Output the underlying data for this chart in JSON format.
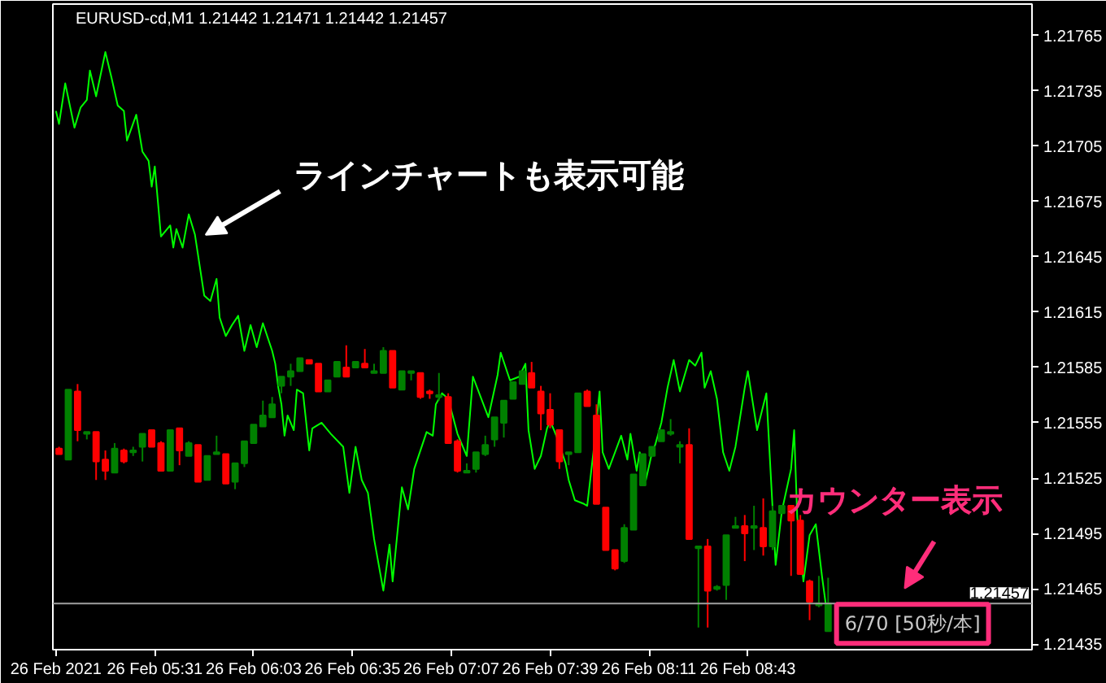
{
  "chart_data": {
    "type": "candlestick",
    "title": "EURUSD-cd,M1  1.21442 1.21471 1.21442 1.21457",
    "x": [
      "2021-02-26T05:00",
      "2021-02-26T05:03",
      "2021-02-26T05:06",
      "2021-02-26T05:09",
      "2021-02-26T05:12",
      "2021-02-26T05:15",
      "2021-02-26T05:18",
      "2021-02-26T05:21",
      "2021-02-26T05:24",
      "2021-02-26T05:27",
      "2021-02-26T05:30",
      "2021-02-26T05:33",
      "2021-02-26T05:36",
      "2021-02-26T05:39",
      "2021-02-26T05:42",
      "2021-02-26T05:45",
      "2021-02-26T05:48",
      "2021-02-26T05:51",
      "2021-02-26T05:54",
      "2021-02-26T05:57",
      "2021-02-26T06:00",
      "2021-02-26T06:03",
      "2021-02-26T06:06",
      "2021-02-26T06:09",
      "2021-02-26T06:12",
      "2021-02-26T06:15",
      "2021-02-26T06:18",
      "2021-02-26T06:21",
      "2021-02-26T06:24",
      "2021-02-26T06:27",
      "2021-02-26T06:30",
      "2021-02-26T06:33",
      "2021-02-26T06:36",
      "2021-02-26T06:39",
      "2021-02-26T06:42",
      "2021-02-26T06:45",
      "2021-02-26T06:48",
      "2021-02-26T06:51",
      "2021-02-26T06:54",
      "2021-02-26T06:57",
      "2021-02-26T07:00",
      "2021-02-26T07:03",
      "2021-02-26T07:06",
      "2021-02-26T07:09",
      "2021-02-26T07:12",
      "2021-02-26T07:15",
      "2021-02-26T07:18",
      "2021-02-26T07:21",
      "2021-02-26T07:24",
      "2021-02-26T07:27",
      "2021-02-26T07:30",
      "2021-02-26T07:33",
      "2021-02-26T07:36",
      "2021-02-26T07:39",
      "2021-02-26T07:42",
      "2021-02-26T07:45",
      "2021-02-26T07:48",
      "2021-02-26T07:51",
      "2021-02-26T07:54",
      "2021-02-26T07:57",
      "2021-02-26T08:00",
      "2021-02-26T08:03",
      "2021-02-26T08:06",
      "2021-02-26T08:09",
      "2021-02-26T08:12",
      "2021-02-26T08:15",
      "2021-02-26T08:18",
      "2021-02-26T08:21",
      "2021-02-26T08:24",
      "2021-02-26T08:27",
      "2021-02-26T08:30",
      "2021-02-26T08:33",
      "2021-02-26T08:36",
      "2021-02-26T08:39",
      "2021-02-26T08:42",
      "2021-02-26T08:45",
      "2021-02-26T08:48",
      "2021-02-26T08:51",
      "2021-02-26T08:54",
      "2021-02-26T08:57",
      "2021-02-26T09:00",
      "2021-02-26T09:03",
      "2021-02-26T09:06",
      "2021-02-26T09:09"
    ],
    "ohlc": [
      [
        1.21541,
        1.21542,
        1.21538,
        1.21538
      ],
      [
        1.21535,
        1.21573,
        1.21535,
        1.21573
      ],
      [
        1.21572,
        1.21576,
        1.21545,
        1.21551
      ],
      [
        1.21549,
        1.2155,
        1.21546,
        1.2155
      ],
      [
        1.2155,
        1.2155,
        1.21524,
        1.21534
      ],
      [
        1.21535,
        1.2154,
        1.21524,
        1.21529
      ],
      [
        1.21528,
        1.21544,
        1.21528,
        1.21541
      ],
      [
        1.2154,
        1.21541,
        1.21533,
        1.21534
      ],
      [
        1.21539,
        1.21542,
        1.21537,
        1.2154
      ],
      [
        1.21542,
        1.21549,
        1.21534,
        1.21549
      ],
      [
        1.21551,
        1.21551,
        1.21542,
        1.21542
      ],
      [
        1.21544,
        1.21545,
        1.21529,
        1.21529
      ],
      [
        1.21529,
        1.21551,
        1.21529,
        1.21551
      ],
      [
        1.21552,
        1.21552,
        1.21532,
        1.2154
      ],
      [
        1.21537,
        1.21545,
        1.21537,
        1.21544
      ],
      [
        1.21543,
        1.21543,
        1.21523,
        1.21523
      ],
      [
        1.21524,
        1.21537,
        1.21524,
        1.21537
      ],
      [
        1.21538,
        1.21548,
        1.21538,
        1.21539
      ],
      [
        1.21538,
        1.21538,
        1.21522,
        1.21522
      ],
      [
        1.21523,
        1.21533,
        1.21519,
        1.21533
      ],
      [
        1.21533,
        1.21545,
        1.21531,
        1.21545
      ],
      [
        1.21544,
        1.21554,
        1.21544,
        1.21554
      ],
      [
        1.21553,
        1.21567,
        1.21553,
        1.21559
      ],
      [
        1.21558,
        1.21569,
        1.21558,
        1.21565
      ],
      [
        1.21575,
        1.2158,
        1.21571,
        1.2158
      ],
      [
        1.2158,
        1.21587,
        1.21575,
        1.21583
      ],
      [
        1.21583,
        1.2159,
        1.21583,
        1.2159
      ],
      [
        1.21589,
        1.21589,
        1.21587,
        1.21587
      ],
      [
        1.21587,
        1.21587,
        1.21572,
        1.21572
      ],
      [
        1.21572,
        1.21578,
        1.21572,
        1.21578
      ],
      [
        1.2158,
        1.21588,
        1.2158,
        1.21588
      ],
      [
        1.21585,
        1.21597,
        1.2158,
        1.2158
      ],
      [
        1.21585,
        1.21588,
        1.21585,
        1.21588
      ],
      [
        1.21587,
        1.21595,
        1.21585,
        1.21585
      ],
      [
        1.21582,
        1.21587,
        1.21582,
        1.21583
      ],
      [
        1.21582,
        1.21596,
        1.21582,
        1.21594
      ],
      [
        1.21594,
        1.21594,
        1.21574,
        1.21574
      ],
      [
        1.21573,
        1.21583,
        1.21573,
        1.21583
      ],
      [
        1.21582,
        1.21583,
        1.21578,
        1.21583
      ],
      [
        1.21582,
        1.21582,
        1.21568,
        1.21569
      ],
      [
        1.21572,
        1.21573,
        1.21568,
        1.21571
      ],
      [
        1.21569,
        1.21582,
        1.21567,
        1.2157
      ],
      [
        1.21569,
        1.21571,
        1.21544,
        1.21544
      ],
      [
        1.21545,
        1.21546,
        1.21528,
        1.21529
      ],
      [
        1.21528,
        1.21533,
        1.21528,
        1.21529
      ],
      [
        1.2153,
        1.21539,
        1.21528,
        1.21539
      ],
      [
        1.21538,
        1.21548,
        1.21537,
        1.21543
      ],
      [
        1.21546,
        1.21558,
        1.21542,
        1.21558
      ],
      [
        1.21555,
        1.21567,
        1.21547,
        1.21567
      ],
      [
        1.21568,
        1.21577,
        1.21568,
        1.21577
      ],
      [
        1.21576,
        1.21583,
        1.21576,
        1.21583
      ],
      [
        1.21582,
        1.21588,
        1.21574,
        1.21574
      ],
      [
        1.21572,
        1.21575,
        1.21551,
        1.2156
      ],
      [
        1.21562,
        1.21571,
        1.21552,
        1.21554
      ],
      [
        1.21551,
        1.21551,
        1.2153,
        1.21534
      ],
      [
        1.21538,
        1.21539,
        1.21532,
        1.21539
      ],
      [
        1.21539,
        1.21571,
        1.21539,
        1.21571
      ],
      [
        1.21572,
        1.21573,
        1.21564,
        1.21564
      ],
      [
        1.21559,
        1.21565,
        1.21511,
        1.21511
      ],
      [
        1.21509,
        1.21509,
        1.21486,
        1.21486
      ],
      [
        1.21486,
        1.21486,
        1.21475,
        1.21476
      ],
      [
        1.2148,
        1.215,
        1.21479,
        1.21498
      ],
      [
        1.21497,
        1.21527,
        1.21497,
        1.21527
      ],
      [
        1.21521,
        1.21538,
        1.21521,
        1.21538
      ],
      [
        1.21537,
        1.21542,
        1.21537,
        1.21542
      ],
      [
        1.21545,
        1.21551,
        1.21545,
        1.21551
      ],
      [
        1.21549,
        1.21557,
        1.21548,
        1.2155
      ],
      [
        1.21542,
        1.21545,
        1.21533,
        1.21543
      ],
      [
        1.21543,
        1.21552,
        1.21492,
        1.21492
      ],
      [
        1.21487,
        1.21488,
        1.21444,
        1.21488
      ],
      [
        1.21488,
        1.21492,
        1.21444,
        1.21464
      ],
      [
        1.21465,
        1.21467,
        1.21464,
        1.21466
      ],
      [
        1.21467,
        1.21494,
        1.21459,
        1.21494
      ],
      [
        1.21498,
        1.21504,
        1.21498,
        1.21499
      ],
      [
        1.21499,
        1.21505,
        1.2148,
        1.21495
      ],
      [
        1.21498,
        1.2151,
        1.21486,
        1.21499
      ],
      [
        1.21498,
        1.21514,
        1.21483,
        1.21488
      ],
      [
        1.21488,
        1.2151,
        1.21486,
        1.21507
      ],
      [
        1.21506,
        1.2151,
        1.21506,
        1.2151
      ],
      [
        1.2151,
        1.2151,
        1.21472,
        1.21502
      ],
      [
        1.21502,
        1.21505,
        1.21473,
        1.21473
      ],
      [
        1.21469,
        1.2147,
        1.21448,
        1.21458
      ],
      [
        1.21456,
        1.21472,
        1.21455,
        1.21457
      ],
      [
        1.21442,
        1.21471,
        1.21442,
        1.21457
      ]
    ],
    "colors": [
      "#ff0000",
      "#008000",
      "#ff0000",
      "#008000",
      "#ff0000",
      "#ff0000",
      "#008000",
      "#ff0000",
      "#008000",
      "#008000",
      "#ff0000",
      "#ff0000",
      "#008000",
      "#ff0000",
      "#008000",
      "#ff0000",
      "#008000",
      "#008000",
      "#ff0000",
      "#008000",
      "#008000",
      "#008000",
      "#008000",
      "#008000",
      "#008000",
      "#008000",
      "#008000",
      "#ff0000",
      "#ff0000",
      "#008000",
      "#008000",
      "#ff0000",
      "#008000",
      "#ff0000",
      "#008000",
      "#008000",
      "#ff0000",
      "#008000",
      "#008000",
      "#ff0000",
      "#ff0000",
      "#008000",
      "#ff0000",
      "#ff0000",
      "#008000",
      "#008000",
      "#008000",
      "#008000",
      "#008000",
      "#008000",
      "#008000",
      "#ff0000",
      "#ff0000",
      "#ff0000",
      "#ff0000",
      "#008000",
      "#008000",
      "#ff0000",
      "#ff0000",
      "#ff0000",
      "#ff0000",
      "#008000",
      "#008000",
      "#008000",
      "#008000",
      "#008000",
      "#008000",
      "#008000",
      "#ff0000",
      "#008000",
      "#ff0000",
      "#008000",
      "#008000",
      "#008000",
      "#ff0000",
      "#008000",
      "#ff0000",
      "#008000",
      "#008000",
      "#ff0000",
      "#ff0000",
      "#ff0000",
      "#008000",
      "#008000"
    ],
    "series": [
      {
        "type": "line",
        "color": "#00ff00",
        "x": [
          "2021-02-26T04:59",
          "2021-02-26T05:00",
          "2021-02-26T05:02",
          "2021-02-26T05:05",
          "2021-02-26T05:07",
          "2021-02-26T05:09",
          "2021-02-26T05:10",
          "2021-02-26T05:12",
          "2021-02-26T05:15",
          "2021-02-26T05:17",
          "2021-02-26T05:19",
          "2021-02-26T05:21",
          "2021-02-26T05:22",
          "2021-02-26T05:25",
          "2021-02-26T05:27",
          "2021-02-26T05:29",
          "2021-02-26T05:30",
          "2021-02-26T05:31",
          "2021-02-26T05:33",
          "2021-02-26T05:36",
          "2021-02-26T05:37",
          "2021-02-26T05:38",
          "2021-02-26T05:40",
          "2021-02-26T05:42",
          "2021-02-26T05:44",
          "2021-02-26T05:47",
          "2021-02-26T05:49",
          "2021-02-26T05:51",
          "2021-02-26T05:52",
          "2021-02-26T05:54",
          "2021-02-26T05:56",
          "2021-02-26T05:58",
          "2021-02-26T06:00",
          "2021-02-26T06:02",
          "2021-02-26T06:04",
          "2021-02-26T06:06",
          "2021-02-26T06:09",
          "2021-02-26T06:10",
          "2021-02-26T06:11",
          "2021-02-26T06:12",
          "2021-02-26T06:13",
          "2021-02-26T06:14",
          "2021-02-26T06:16",
          "2021-02-26T06:17",
          "2021-02-26T06:19",
          "2021-02-26T06:21",
          "2021-02-26T06:22",
          "2021-02-26T06:25",
          "2021-02-26T06:28",
          "2021-02-26T06:32",
          "2021-02-26T06:34",
          "2021-02-26T06:36",
          "2021-02-26T06:38",
          "2021-02-26T06:40",
          "2021-02-26T06:42",
          "2021-02-26T06:45",
          "2021-02-26T06:47",
          "2021-02-26T06:48",
          "2021-02-26T06:51",
          "2021-02-26T06:53",
          "2021-02-26T06:55",
          "2021-02-26T06:59",
          "2021-02-26T07:01",
          "2021-02-26T07:02",
          "2021-02-26T07:04",
          "2021-02-26T07:06",
          "2021-02-26T07:09",
          "2021-02-26T07:12",
          "2021-02-26T07:14",
          "2021-02-26T07:19",
          "2021-02-26T07:22",
          "2021-02-26T07:23",
          "2021-02-26T07:26",
          "2021-02-26T07:29",
          "2021-02-26T07:31",
          "2021-02-26T07:32",
          "2021-02-26T07:34",
          "2021-02-26T07:36",
          "2021-02-26T07:38",
          "2021-02-26T07:39",
          "2021-02-26T07:41",
          "2021-02-26T07:44",
          "2021-02-26T07:45",
          "2021-02-26T07:47",
          "2021-02-26T07:50",
          "2021-02-26T07:51",
          "2021-02-26T07:53",
          "2021-02-26T07:55",
          "2021-02-26T07:56",
          "2021-02-26T07:58",
          "2021-02-26T08:00",
          "2021-02-26T08:02",
          "2021-02-26T08:04",
          "2021-02-26T08:05",
          "2021-02-26T08:07",
          "2021-02-26T08:08",
          "2021-02-26T08:10",
          "2021-02-26T08:12",
          "2021-02-26T08:13",
          "2021-02-26T08:15",
          "2021-02-26T08:17",
          "2021-02-26T08:19",
          "2021-02-26T08:21",
          "2021-02-26T08:24",
          "2021-02-26T08:26",
          "2021-02-26T08:28",
          "2021-02-26T08:29",
          "2021-02-26T08:31",
          "2021-02-26T08:33",
          "2021-02-26T08:35",
          "2021-02-26T08:37",
          "2021-02-26T08:39",
          "2021-02-26T08:42",
          "2021-02-26T08:43",
          "2021-02-26T08:46",
          "2021-02-26T08:49",
          "2021-02-26T08:52",
          "2021-02-26T08:54",
          "2021-02-26T08:57",
          "2021-02-26T08:58",
          "2021-02-26T08:59",
          "2021-02-26T09:01",
          "2021-02-26T09:03",
          "2021-02-26T09:05",
          "2021-02-26T09:07",
          "2021-02-26T09:09"
        ],
        "values": [
          1.21724,
          1.21717,
          1.21739,
          1.21715,
          1.21726,
          1.2173,
          1.21746,
          1.21732,
          1.21756,
          1.21742,
          1.21727,
          1.21724,
          1.21708,
          1.21722,
          1.21702,
          1.21697,
          1.21683,
          1.21694,
          1.21656,
          1.21662,
          1.2165,
          1.2166,
          1.2165,
          1.21668,
          1.21657,
          1.21624,
          1.21621,
          1.21633,
          1.21612,
          1.21602,
          1.21608,
          1.21613,
          1.21594,
          1.21608,
          1.21596,
          1.21609,
          1.21594,
          1.21587,
          1.21574,
          1.21565,
          1.21548,
          1.21559,
          1.21551,
          1.21573,
          1.21571,
          1.2154,
          1.21552,
          1.21555,
          1.21549,
          1.21542,
          1.21517,
          1.21542,
          1.21524,
          1.21517,
          1.21492,
          1.21464,
          1.21489,
          1.21469,
          1.2152,
          1.21508,
          1.2153,
          1.2155,
          1.21548,
          1.21565,
          1.21571,
          1.21568,
          1.21549,
          1.21537,
          1.2158,
          1.21558,
          1.21581,
          1.21593,
          1.21578,
          1.2158,
          1.21587,
          1.21551,
          1.2153,
          1.21537,
          1.21552,
          1.21556,
          1.21548,
          1.21533,
          1.21524,
          1.21513,
          1.21511,
          1.2151,
          1.21539,
          1.21572,
          1.21539,
          1.2153,
          1.21539,
          1.21548,
          1.21535,
          1.21549,
          1.21529,
          1.21539,
          1.21524,
          1.21539,
          1.21543,
          1.21555,
          1.21574,
          1.21589,
          1.21572,
          1.21589,
          1.21586,
          1.21593,
          1.21574,
          1.21583,
          1.21568,
          1.21539,
          1.21529,
          1.21542,
          1.21574,
          1.21583,
          1.21551,
          1.21571,
          1.21478,
          1.21507,
          1.2153,
          1.21551,
          1.21504,
          1.21469,
          1.21494,
          1.215,
          1.21472,
          1.21447
        ]
      }
    ],
    "xlim": [
      "2021-02-26T04:58",
      "2021-02-26T10:15"
    ],
    "ylim": [
      1.21432,
      1.21782
    ],
    "xticks": [
      {
        "value": "2021-02-26T04:59",
        "label": "26 Feb 2021"
      },
      {
        "value": "2021-02-26T05:31",
        "label": "26 Feb 05:31"
      },
      {
        "value": "2021-02-26T06:03",
        "label": "26 Feb 06:03"
      },
      {
        "value": "2021-02-26T06:35",
        "label": "26 Feb 06:35"
      },
      {
        "value": "2021-02-26T07:07",
        "label": "26 Feb 07:07"
      },
      {
        "value": "2021-02-26T07:39",
        "label": "26 Feb 07:39"
      },
      {
        "value": "2021-02-26T08:11",
        "label": "26 Feb 08:11"
      },
      {
        "value": "2021-02-26T08:43",
        "label": "26 Feb 08:43"
      }
    ],
    "yticks": [
      1.21435,
      1.21465,
      1.21495,
      1.21525,
      1.21555,
      1.21585,
      1.21615,
      1.21645,
      1.21675,
      1.21705,
      1.21735,
      1.21765
    ],
    "ref_lines": [
      {
        "axis": "y",
        "value": 1.21457,
        "label": "1.21457",
        "color": "#a0a0a0"
      }
    ],
    "annotations": [
      "ラインチャートも表示可能",
      "カウンター表示",
      "6/70 [50秒/本]"
    ]
  }
}
